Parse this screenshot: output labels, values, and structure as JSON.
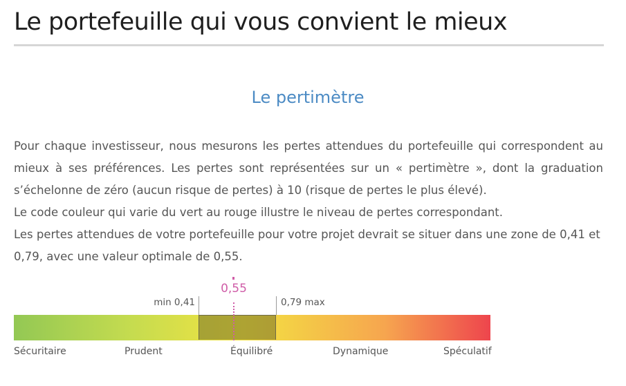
{
  "header": {
    "title": "Le portefeuille qui vous convient le mieux"
  },
  "section": {
    "title": "Le pertimètre"
  },
  "content": {
    "paragraph1": "Pour chaque investisseur, nous mesurons les pertes attendues du portefeuille qui correspondent au mieux à ses préférences. Les pertes sont représentées sur un « pertimètre », dont la graduation s’échelonne de zéro (aucun risque de pertes) à 10 (risque de pertes le plus élevé).",
    "paragraph2": "Le code couleur qui varie du vert au rouge illustre le niveau de pertes correspondant.",
    "paragraph3": "Les pertes attendues de votre portefeuille pour votre projet devrait se situer dans une zone de 0,41 et 0,79, avec une valeur optimale de 0,55."
  },
  "scale": {
    "min_label": "min 0,41",
    "max_label": "0,79 max",
    "optimal_label": "0,55",
    "min_value": 0.41,
    "max_value": 0.79,
    "optimal_value": 0.55,
    "categories": [
      "Sécuritaire",
      "Prudent",
      "Équilibré",
      "Dynamique",
      "Spéculatif"
    ],
    "colors": {
      "gradient_start": "#93c854",
      "gradient_mid": "#f3e341",
      "gradient_end": "#ee454d",
      "zone": "#747028",
      "optimal": "#cf5ca7"
    }
  }
}
